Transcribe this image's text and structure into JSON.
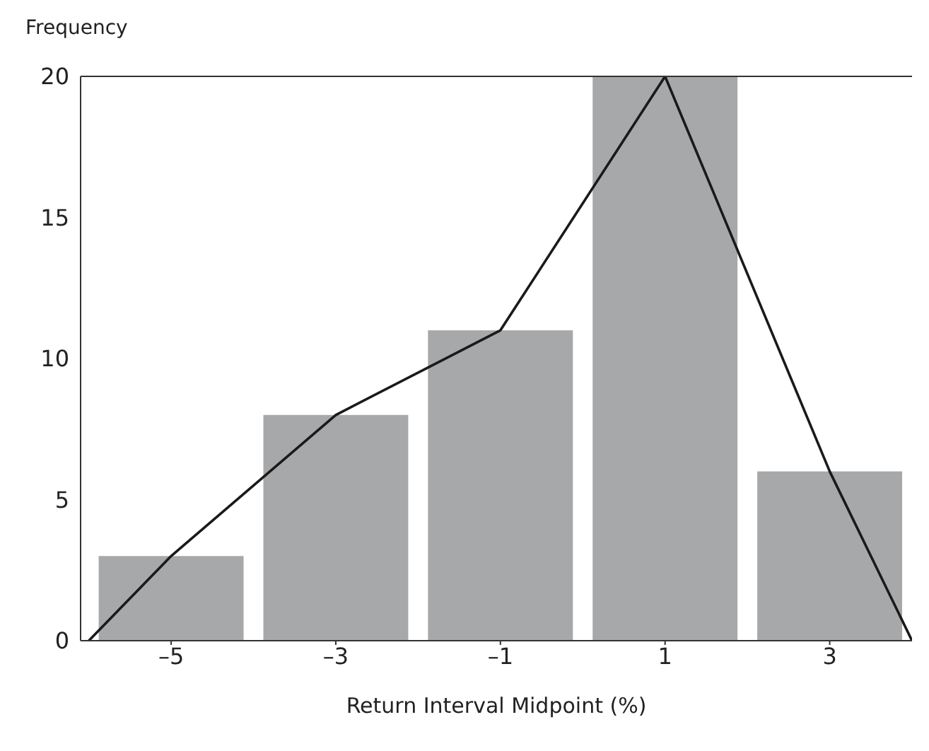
{
  "chart_data": {
    "type": "bar",
    "xlabel": "Return Interval Midpoint (%)",
    "ylabel": "Frequency",
    "x": [
      -5,
      -3,
      -1,
      1,
      3
    ],
    "values": [
      3,
      8,
      11,
      20,
      6
    ],
    "color": "#a7a8aa",
    "series": [
      {
        "type": "line",
        "x": [
          -6,
          -5,
          -3,
          -1,
          1,
          3,
          4
        ],
        "values": [
          0,
          3,
          8,
          11,
          20,
          6,
          0
        ],
        "color": "#1a1a1a"
      }
    ],
    "xlim": [
      -6.1,
      4
    ],
    "xticks": [
      {
        "value": -5,
        "label": "–5"
      },
      {
        "value": -3,
        "label": "–3"
      },
      {
        "value": -1,
        "label": "–1"
      },
      1,
      3
    ],
    "ylim": [
      0,
      20
    ],
    "yticks": [
      0,
      5,
      10,
      15,
      20
    ],
    "marker": "none",
    "line_style": "solid"
  }
}
